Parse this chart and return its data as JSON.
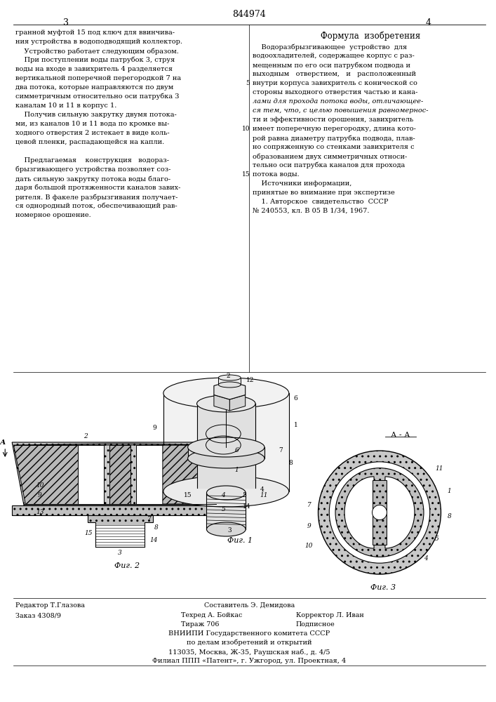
{
  "background_color": "#ffffff",
  "page_number_center": "844974",
  "page_number_left": "3",
  "page_number_right": "4",
  "title_formula": "Формула  изобретения",
  "left_col_text": [
    "гранной муфтой 15 под ключ для ввинчива-",
    "ния устройства в водоподводящий коллектор.",
    "    Устройство работает следующим образом.",
    "    При поступлении воды патрубок 3, струя",
    "воды на входе в завихритель 4 разделяется",
    "вертикальной поперечной перегородкой 7 на",
    "два потока, которые направляются по двум",
    "симметричным относительно оси патрубка 3",
    "каналам 10 и 11 в корпус 1.",
    "    Получив сильную закрутку двумя потока-",
    "ми, из каналов 10 и 11 вода по кромке вы-",
    "ходного отверстия 2 истекает в виде коль-",
    "цевой пленки, распадающейся на капли.",
    "",
    "    Предлагаемая    конструкция   водораз-",
    "брызгивающего устройства позволяет соз-",
    "дать сильную закрутку потока воды благо-",
    "даря большой протяженности каналов завих-",
    "рителя. В факеле разбрызгивания получает-",
    "ся однородный поток, обеспечивающий рав-",
    "номерное орошение."
  ],
  "right_col_text": [
    "    Водоразбрызгивающее  устройство  для",
    "водоохладителей, содержащее корпус с раз-",
    "мещенным по его оси патрубком подвода и",
    "выходным   отверстием,   и   расположенный",
    "внутри корпуса завихритель с конической со",
    "стороны выходного отверстия частью и кана-",
    "лами для прохода потока воды, отличающее-",
    "ся тем, что, с целью повышения равномернос-",
    "ти и эффективности орошения, завихритель",
    "имеет поперечную перегородку, длина кото-",
    "рой равна диаметру патрубка подвода, плав-",
    "но сопряженную со стенками завихрителя с",
    "образованием двух симметричных относи-",
    "тельно оси патрубка каналов для прохода",
    "потока воды.",
    "    Источники информации,",
    "принятые во внимание при экспертизе",
    "    1. Авторское  свидетельство  СССР",
    "№ 240553, кл. В 05 В 1/34, 1967."
  ],
  "italic_indices": [
    6,
    7
  ],
  "line_numbers": {
    "4": "5",
    "9": "10",
    "14": "15"
  },
  "fig1_caption": "Фиг. 1",
  "fig2_caption": "Фиг. 2",
  "fig3_caption": "Фиг. 3",
  "fig3_section_label": "А - А",
  "hatch_color": "#888888",
  "dot_hatch_color": "#aaaaaa"
}
